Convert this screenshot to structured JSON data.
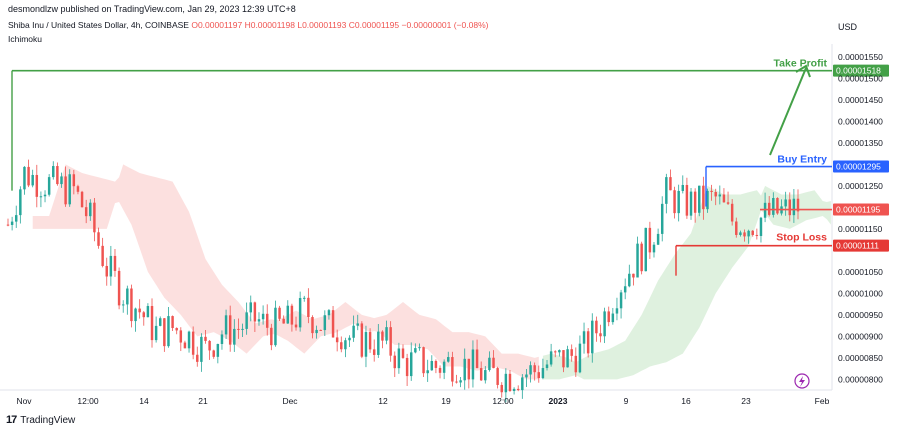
{
  "header": {
    "publisher": "desmondlzw published on TradingView.com, Jan 29, 2023 12:39 UTC+8"
  },
  "symbol": {
    "title": "Shiba Inu / United States Dollar, 4h, COINBASE",
    "ohlc": "O0.00001197 H0.00001198 L0.00001193 C0.00001195 −0.00000001 (−0.08%)"
  },
  "indicator": "Ichimoku",
  "footer": {
    "brand": "TradingView"
  },
  "chart_data": {
    "type": "line",
    "currency_label": "USD",
    "y_ticks": [
      "0.00001550",
      "0.00001500",
      "0.00001450",
      "0.00001400",
      "0.00001350",
      "0.00001250",
      "0.00001150",
      "0.00001050",
      "0.00001000",
      "0.00000950",
      "0.00000900",
      "0.00000850",
      "0.00000800"
    ],
    "x_ticks": [
      "Nov",
      "12:00",
      "14",
      "21",
      "Dec",
      "12",
      "19",
      "12:00",
      "2023",
      "9",
      "16",
      "23",
      "Feb"
    ],
    "ylim": [
      7.8e-06,
      1.58e-05
    ],
    "series": [
      {
        "name": "",
        "x_index": [
          0,
          4,
          8,
          12,
          16,
          20,
          24,
          28,
          32,
          36,
          40,
          44,
          48,
          52,
          56,
          60,
          64,
          68,
          72,
          76,
          80,
          84,
          88,
          92,
          96,
          100,
          104,
          108,
          112,
          116,
          120,
          124,
          128,
          132,
          136,
          140,
          144,
          148,
          152,
          156,
          160,
          164,
          168,
          172,
          176,
          180,
          184,
          188,
          192
        ],
        "values": [
          1.16e-05,
          1.28e-05,
          1.26e-05,
          1.25e-05,
          1.24e-05,
          1.17e-05,
          1.06e-05,
          1e-05,
          9.6e-06,
          9.1e-06,
          9.2e-06,
          9e-06,
          8.7e-06,
          9.1e-06,
          9.2e-06,
          9.4e-06,
          9.2e-06,
          9.3e-06,
          9.6e-06,
          9.3e-06,
          9.2e-06,
          8.9e-06,
          8.9e-06,
          8.8e-06,
          8.4e-06,
          8.4e-06,
          8.3e-06,
          8.4e-06,
          8.3e-06,
          8.1e-06,
          8.1e-06,
          8.1e-06,
          8.2e-06,
          8.4e-06,
          8.5e-06,
          8.7e-06,
          9.3e-06,
          1.01e-05,
          1.07e-05,
          1.12e-05,
          1.23e-05,
          1.21e-05,
          1.21e-05,
          1.22e-05,
          1.17e-05,
          1.16e-05,
          1.18e-05,
          1.19e-05,
          1.2e-05
        ]
      }
    ],
    "levels": [
      {
        "label": "Take Profit",
        "price": "0.00001518",
        "value": 1.518e-05,
        "color": "#43a047"
      },
      {
        "label": "Buy Entry",
        "price": "0.00001295",
        "value": 1.295e-05,
        "color": "#2962ff"
      },
      {
        "label": "",
        "price": "0.00001195",
        "value": 1.195e-05,
        "color": "#ef5350"
      },
      {
        "label": "Stop Loss",
        "price": "0.00001111",
        "value": 1.111e-05,
        "color": "#e53935"
      }
    ],
    "grid": false
  }
}
